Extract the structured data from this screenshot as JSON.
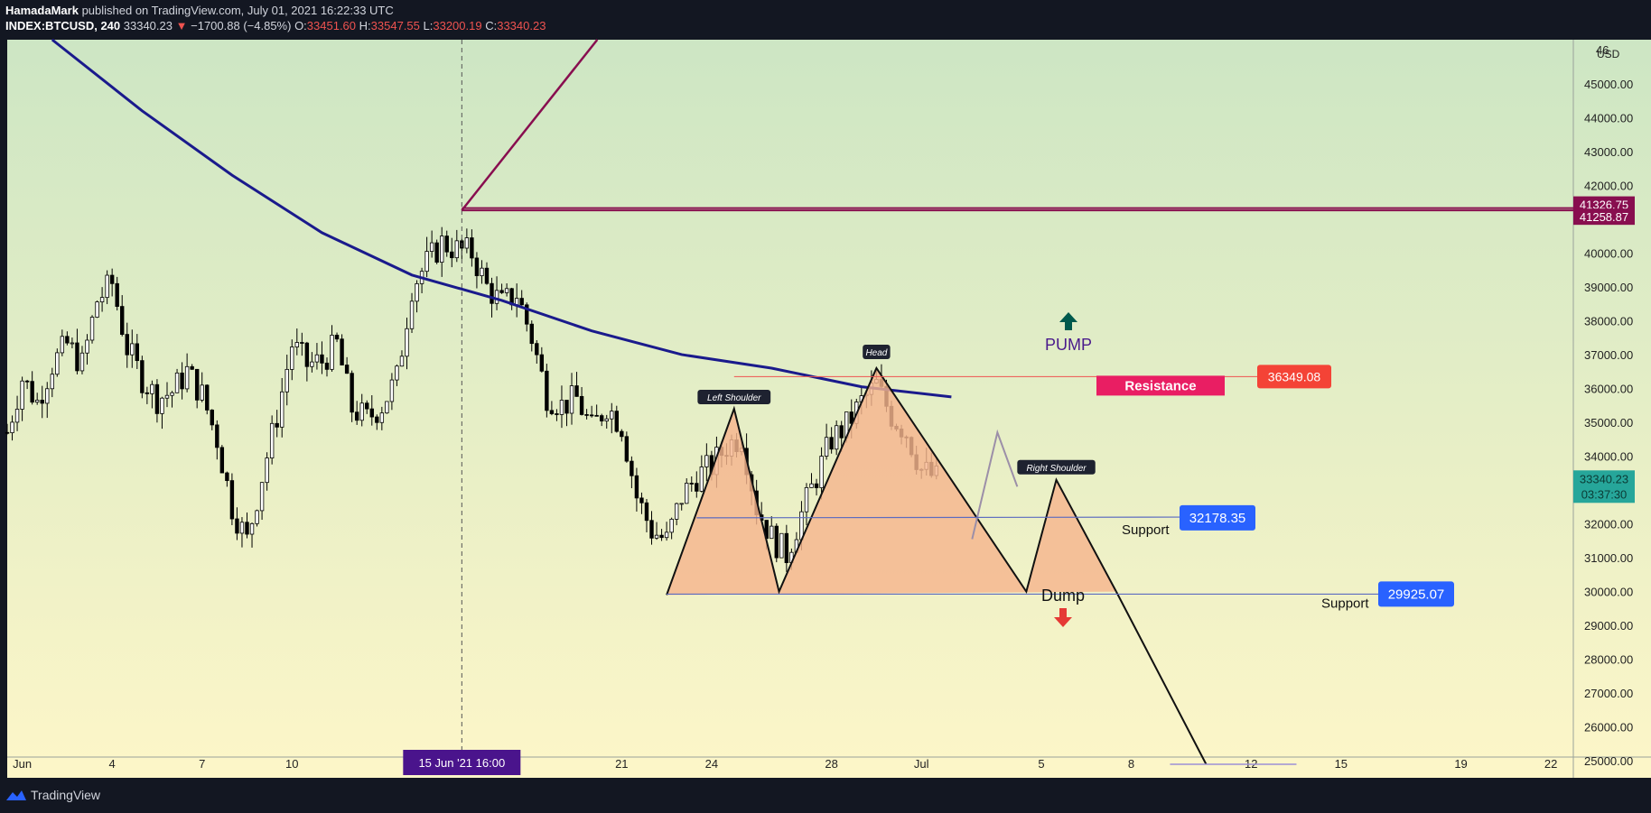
{
  "header": {
    "author": "HamadaMark",
    "published": "published on TradingView.com, July 01, 2021 16:22:33 UTC",
    "symbol": "INDEX:BTCUSD, 240",
    "last": "33340.23",
    "change": "−1700.88 (−4.85%)",
    "o_label": "O:",
    "o": "33451.60",
    "h_label": "H:",
    "h": "33547.55",
    "l_label": "L:",
    "l": "33200.19",
    "c_label": "C:",
    "c": "33340.23"
  },
  "footer": {
    "brand": "TradingView"
  },
  "colors": {
    "up": "#ffffff",
    "down": "#000000",
    "ma": "#1a1a8c",
    "pattern_fill": "#f5b48e",
    "resistance": "#e91e63",
    "price_tag_red": "#f44336",
    "support_tag": "#2962ff",
    "purple_line": "#880e4f",
    "pump_arrow": "#00594c",
    "dump_arrow": "#e53935",
    "current_price_bg": "#26a69a",
    "time_marker_bg": "#4a148c"
  },
  "chart_data": {
    "type": "candlestick",
    "currency": "USD",
    "ylim": [
      24500,
      46300
    ],
    "y_ticks": [
      25000,
      26000,
      27000,
      28000,
      29000,
      30000,
      31000,
      32000,
      33000,
      34000,
      35000,
      36000,
      37000,
      38000,
      39000,
      40000,
      41000,
      42000,
      43000,
      44000,
      45000
    ],
    "y_tick_labels": [
      "25000.00",
      "26000.00",
      "27000.00",
      "28000.00",
      "29000.00",
      "30000.00",
      "31000.00",
      "32000.00",
      "33000.00",
      "34000.00",
      "35000.00",
      "36000.00",
      "37000.00",
      "38000.00",
      "39000.00",
      "40000.00",
      "41000.00",
      "42000.00",
      "43000.00",
      "44000.00",
      "45000.00"
    ],
    "top_tick_label": "46",
    "x_range": [
      "2021-05-31T12:00",
      "2021-07-22T18:00"
    ],
    "x_ticks": [
      {
        "t": "2021-06-01",
        "label": "Jun"
      },
      {
        "t": "2021-06-04",
        "label": "4"
      },
      {
        "t": "2021-06-07",
        "label": "7"
      },
      {
        "t": "2021-06-10",
        "label": "10"
      },
      {
        "t": "2021-06-21",
        "label": "21"
      },
      {
        "t": "2021-06-24",
        "label": "24"
      },
      {
        "t": "2021-06-28",
        "label": "28"
      },
      {
        "t": "2021-07-01",
        "label": "Jul"
      },
      {
        "t": "2021-07-05",
        "label": "5"
      },
      {
        "t": "2021-07-08",
        "label": "8"
      },
      {
        "t": "2021-07-12",
        "label": "12"
      },
      {
        "t": "2021-07-15",
        "label": "15"
      },
      {
        "t": "2021-07-19",
        "label": "19"
      },
      {
        "t": "2021-07-22",
        "label": "22"
      }
    ],
    "price_path": [
      [
        "2021-05-31T12:00",
        34700
      ],
      [
        "2021-06-01T00:00",
        36300
      ],
      [
        "2021-06-01T12:00",
        35600
      ],
      [
        "2021-06-02T00:00",
        36700
      ],
      [
        "2021-06-02T12:00",
        37300
      ],
      [
        "2021-06-03T00:00",
        36700
      ],
      [
        "2021-06-03T12:00",
        38600
      ],
      [
        "2021-06-04T00:00",
        39100
      ],
      [
        "2021-06-04T12:00",
        37200
      ],
      [
        "2021-06-05T00:00",
        36300
      ],
      [
        "2021-06-05T12:00",
        35700
      ],
      [
        "2021-06-06T00:00",
        35900
      ],
      [
        "2021-06-06T12:00",
        36500
      ],
      [
        "2021-06-07T00:00",
        35800
      ],
      [
        "2021-06-07T12:00",
        34500
      ],
      [
        "2021-06-08T00:00",
        32500
      ],
      [
        "2021-06-08T12:00",
        31500
      ],
      [
        "2021-06-09T00:00",
        33400
      ],
      [
        "2021-06-09T12:00",
        35200
      ],
      [
        "2021-06-10T00:00",
        37300
      ],
      [
        "2021-06-10T12:00",
        36700
      ],
      [
        "2021-06-11T00:00",
        36800
      ],
      [
        "2021-06-11T12:00",
        37300
      ],
      [
        "2021-06-12T00:00",
        35400
      ],
      [
        "2021-06-12T12:00",
        35100
      ],
      [
        "2021-06-13T00:00",
        35500
      ],
      [
        "2021-06-13T12:00",
        36300
      ],
      [
        "2021-06-14T00:00",
        39000
      ],
      [
        "2021-06-14T12:00",
        39700
      ],
      [
        "2021-06-15T00:00",
        40300
      ],
      [
        "2021-06-15T12:00",
        40100
      ],
      [
        "2021-06-16T00:00",
        40000
      ],
      [
        "2021-06-16T12:00",
        39000
      ],
      [
        "2021-06-17T00:00",
        38500
      ],
      [
        "2021-06-17T12:00",
        38800
      ],
      [
        "2021-06-18T00:00",
        37500
      ],
      [
        "2021-06-18T12:00",
        35800
      ],
      [
        "2021-06-19T00:00",
        35500
      ],
      [
        "2021-06-19T12:00",
        35700
      ],
      [
        "2021-06-20T00:00",
        34800
      ],
      [
        "2021-06-20T12:00",
        35500
      ],
      [
        "2021-06-21T00:00",
        34900
      ],
      [
        "2021-06-21T12:00",
        32800
      ],
      [
        "2021-06-22T00:00",
        31800
      ],
      [
        "2021-06-22T12:00",
        31500
      ],
      [
        "2021-06-23T00:00",
        32800
      ],
      [
        "2021-06-23T12:00",
        33400
      ],
      [
        "2021-06-24T00:00",
        33700
      ],
      [
        "2021-06-24T12:00",
        34300
      ],
      [
        "2021-06-25T00:00",
        34600
      ],
      [
        "2021-06-25T12:00",
        32500
      ],
      [
        "2021-06-26T00:00",
        31600
      ],
      [
        "2021-06-26T12:00",
        31100
      ],
      [
        "2021-06-27T00:00",
        32300
      ],
      [
        "2021-06-27T12:00",
        33400
      ],
      [
        "2021-06-28T00:00",
        34500
      ],
      [
        "2021-06-28T12:00",
        34900
      ],
      [
        "2021-06-29T00:00",
        35600
      ],
      [
        "2021-06-29T12:00",
        36100
      ],
      [
        "2021-06-30T00:00",
        35200
      ],
      [
        "2021-06-30T12:00",
        34700
      ],
      [
        "2021-07-01T00:00",
        33600
      ],
      [
        "2021-07-01T12:00",
        33340
      ]
    ],
    "moving_average": [
      [
        "2021-06-02T00:00",
        46300
      ],
      [
        "2021-06-05T00:00",
        44200
      ],
      [
        "2021-06-08T00:00",
        42300
      ],
      [
        "2021-06-11T00:00",
        40600
      ],
      [
        "2021-06-14T00:00",
        39350
      ],
      [
        "2021-06-17T00:00",
        38600
      ],
      [
        "2021-06-20T00:00",
        37700
      ],
      [
        "2021-06-23T00:00",
        37000
      ],
      [
        "2021-06-26T00:00",
        36600
      ],
      [
        "2021-06-29T00:00",
        36050
      ],
      [
        "2021-07-02T00:00",
        35750
      ]
    ],
    "time_marker": {
      "t": "2021-06-15T16:00",
      "label": "15 Jun '21   16:00"
    },
    "price_tags": [
      {
        "value": 41326.75,
        "label": "41326.75",
        "color": "#880e4f"
      },
      {
        "value": 41258.87,
        "label": "41258.87",
        "color": "#880e4f"
      },
      {
        "value": 33340.23,
        "label": "33340.23",
        "sub": "03:37:30",
        "color": "#26a69a"
      }
    ],
    "horizontal_levels": [
      41326.75,
      41258.87
    ],
    "resistance": {
      "value": 36349.08,
      "label": "36349.08",
      "text": "Resistance"
    },
    "supports": [
      {
        "value": 32178.35,
        "label": "32178.35",
        "text": "Support"
      },
      {
        "value": 29925.07,
        "label": "29925.07",
        "text": "Support"
      }
    ],
    "pattern": {
      "points": [
        [
          "2021-06-22T12:00",
          29900
        ],
        [
          "2021-06-24T18:00",
          35400
        ],
        [
          "2021-06-26T06:00",
          30000
        ],
        [
          "2021-06-29T12:00",
          36600
        ],
        [
          "2021-07-04T12:00",
          30000
        ],
        [
          "2021-07-05T12:00",
          33300
        ],
        [
          "2021-07-07T12:00",
          30000
        ]
      ],
      "projection_end": [
        "2021-07-10T12:00",
        24900
      ],
      "left_shoulder": "Left Shoulder",
      "head": "Head",
      "right_shoulder": "Right Shoulder"
    },
    "annotations": {
      "pump": "PUMP",
      "dump": "Dump"
    }
  }
}
